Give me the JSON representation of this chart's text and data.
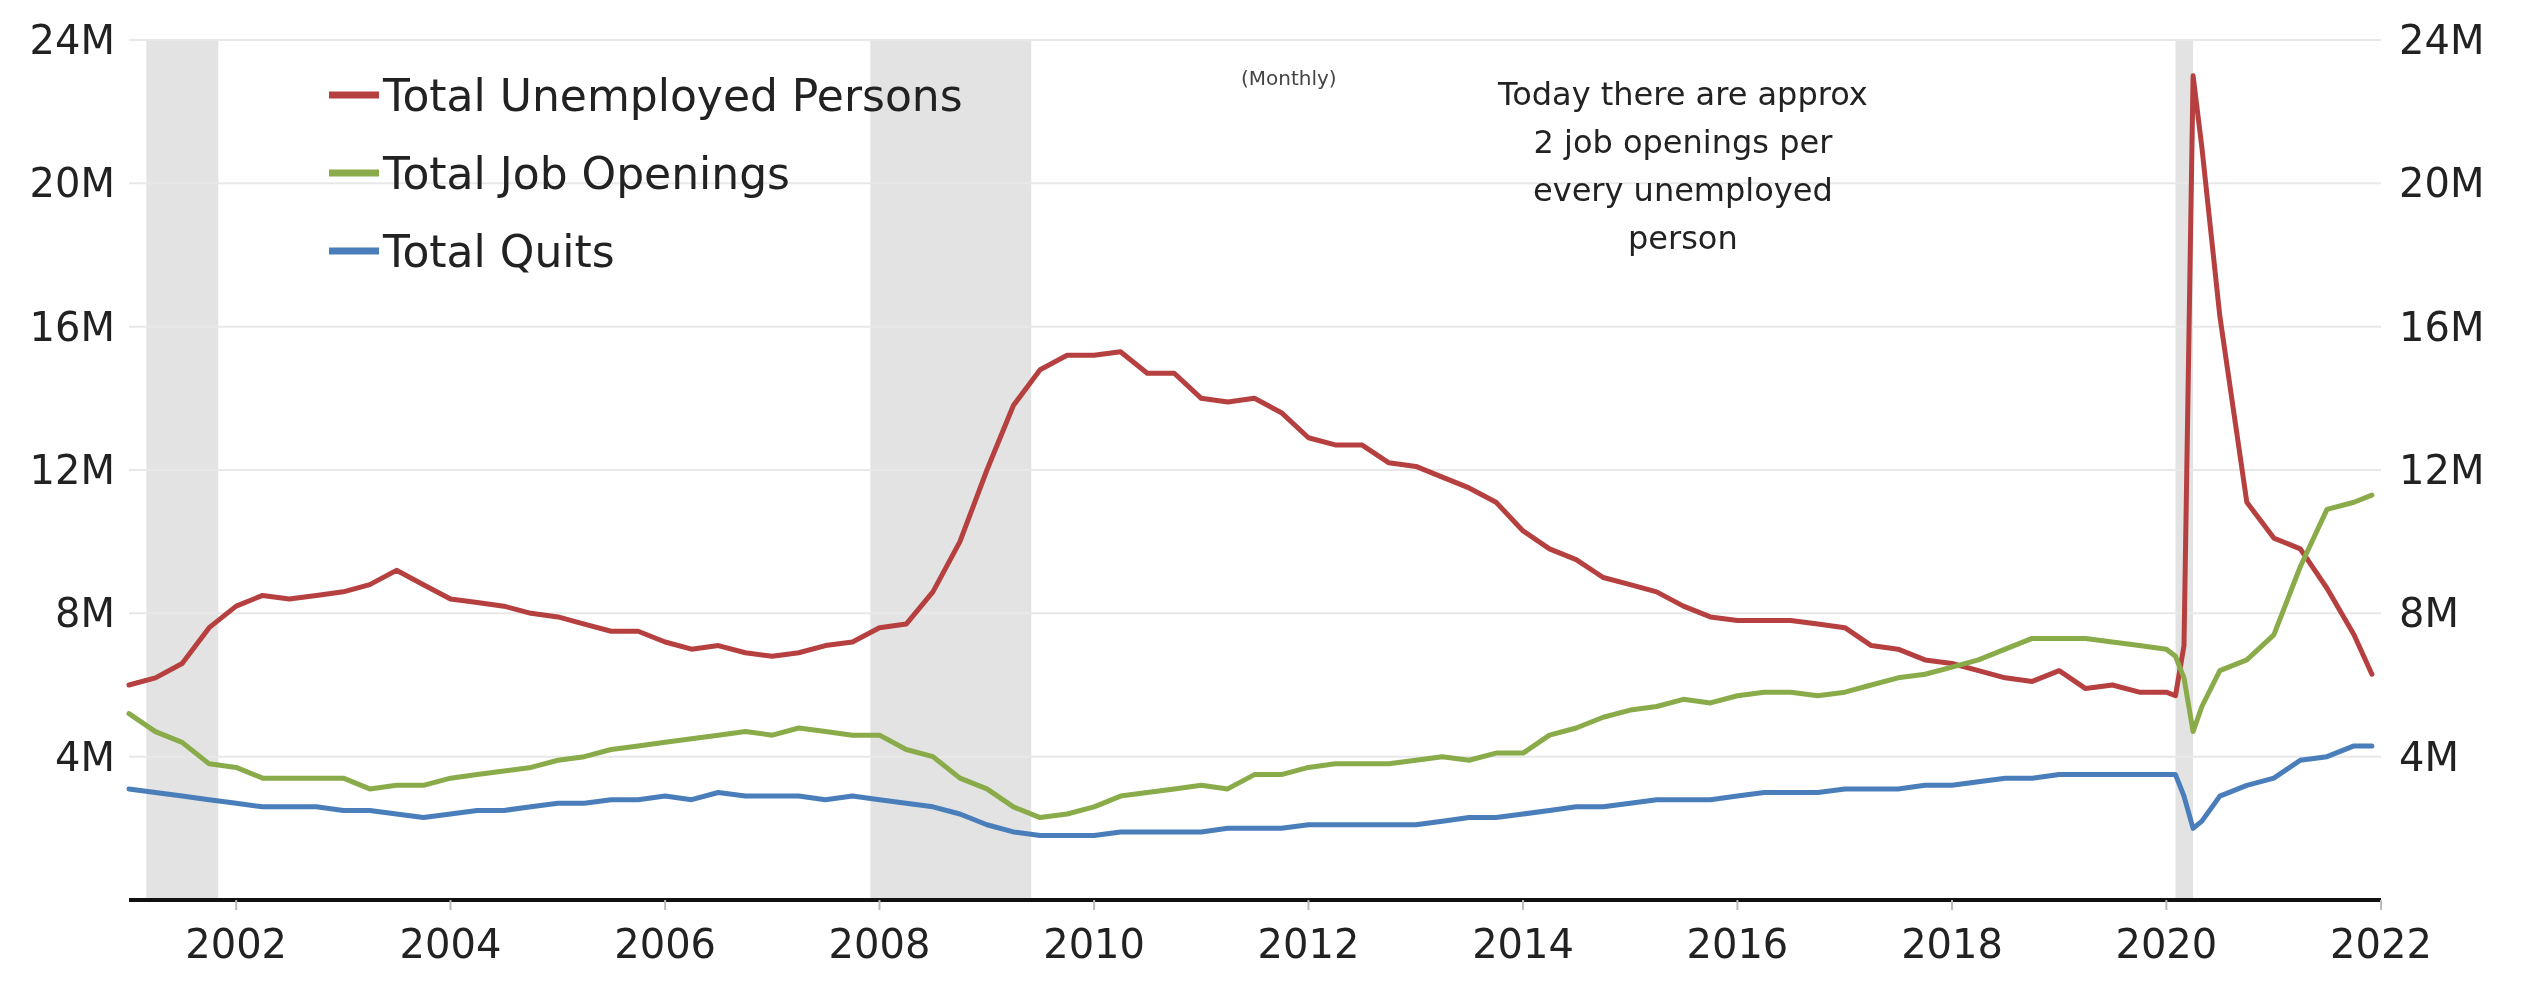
{
  "chart_data": {
    "type": "line",
    "annotations": [
      "(Monthly)",
      "Today there are approx 2 job openings per every unemployed person"
    ],
    "x": [
      "2001-01",
      "2001-04",
      "2001-07",
      "2001-10",
      "2002-01",
      "2002-04",
      "2002-07",
      "2002-10",
      "2003-01",
      "2003-04",
      "2003-07",
      "2003-10",
      "2004-01",
      "2004-04",
      "2004-07",
      "2004-10",
      "2005-01",
      "2005-04",
      "2005-07",
      "2005-10",
      "2006-01",
      "2006-04",
      "2006-07",
      "2006-10",
      "2007-01",
      "2007-04",
      "2007-07",
      "2007-10",
      "2008-01",
      "2008-04",
      "2008-07",
      "2008-10",
      "2009-01",
      "2009-04",
      "2009-07",
      "2009-10",
      "2010-01",
      "2010-04",
      "2010-07",
      "2010-10",
      "2011-01",
      "2011-04",
      "2011-07",
      "2011-10",
      "2012-01",
      "2012-04",
      "2012-07",
      "2012-10",
      "2013-01",
      "2013-04",
      "2013-07",
      "2013-10",
      "2014-01",
      "2014-04",
      "2014-07",
      "2014-10",
      "2015-01",
      "2015-04",
      "2015-07",
      "2015-10",
      "2016-01",
      "2016-04",
      "2016-07",
      "2016-10",
      "2017-01",
      "2017-04",
      "2017-07",
      "2017-10",
      "2018-01",
      "2018-04",
      "2018-07",
      "2018-10",
      "2019-01",
      "2019-04",
      "2019-07",
      "2019-10",
      "2020-01",
      "2020-02",
      "2020-03",
      "2020-04",
      "2020-05",
      "2020-07",
      "2020-10",
      "2021-01",
      "2021-04",
      "2021-07",
      "2021-10",
      "2021-12"
    ],
    "series": [
      {
        "name": "Total Unemployed Persons",
        "color": "#b5403f",
        "values": [
          6.0,
          6.2,
          6.6,
          7.6,
          8.2,
          8.5,
          8.4,
          8.5,
          8.6,
          8.8,
          9.2,
          8.8,
          8.4,
          8.3,
          8.2,
          8.0,
          7.9,
          7.7,
          7.5,
          7.5,
          7.2,
          7.0,
          7.1,
          6.9,
          6.8,
          6.9,
          7.1,
          7.2,
          7.6,
          7.7,
          8.6,
          10.0,
          12.0,
          13.8,
          14.8,
          15.2,
          15.2,
          15.3,
          14.7,
          14.7,
          14.0,
          13.9,
          14.0,
          13.6,
          12.9,
          12.7,
          12.7,
          12.2,
          12.1,
          11.8,
          11.5,
          11.1,
          10.3,
          9.8,
          9.5,
          9.0,
          8.8,
          8.6,
          8.2,
          7.9,
          7.8,
          7.8,
          7.8,
          7.7,
          7.6,
          7.1,
          7.0,
          6.7,
          6.6,
          6.4,
          6.2,
          6.1,
          6.4,
          5.9,
          6.0,
          5.8,
          5.8,
          5.7,
          7.1,
          23.0,
          21.0,
          16.3,
          11.1,
          10.1,
          9.8,
          8.7,
          7.4,
          6.3
        ]
      },
      {
        "name": "Total Job Openings",
        "color": "#8aab4a",
        "values": [
          5.2,
          4.7,
          4.4,
          3.8,
          3.7,
          3.4,
          3.4,
          3.4,
          3.4,
          3.1,
          3.2,
          3.2,
          3.4,
          3.5,
          3.6,
          3.7,
          3.9,
          4.0,
          4.2,
          4.3,
          4.4,
          4.5,
          4.6,
          4.7,
          4.6,
          4.8,
          4.7,
          4.6,
          4.6,
          4.2,
          4.0,
          3.4,
          3.1,
          2.6,
          2.3,
          2.4,
          2.6,
          2.9,
          3.0,
          3.1,
          3.2,
          3.1,
          3.5,
          3.5,
          3.7,
          3.8,
          3.8,
          3.8,
          3.9,
          4.0,
          3.9,
          4.1,
          4.1,
          4.6,
          4.8,
          5.1,
          5.3,
          5.4,
          5.6,
          5.5,
          5.7,
          5.8,
          5.8,
          5.7,
          5.8,
          6.0,
          6.2,
          6.3,
          6.5,
          6.7,
          7.0,
          7.3,
          7.3,
          7.3,
          7.2,
          7.1,
          7.0,
          6.8,
          6.2,
          4.7,
          5.4,
          6.4,
          6.7,
          7.4,
          9.3,
          10.9,
          11.1,
          11.3
        ]
      },
      {
        "name": "Total Quits",
        "color": "#4a7ebb",
        "values": [
          3.1,
          3.0,
          2.9,
          2.8,
          2.7,
          2.6,
          2.6,
          2.6,
          2.5,
          2.5,
          2.4,
          2.3,
          2.4,
          2.5,
          2.5,
          2.6,
          2.7,
          2.7,
          2.8,
          2.8,
          2.9,
          2.8,
          3.0,
          2.9,
          2.9,
          2.9,
          2.8,
          2.9,
          2.8,
          2.7,
          2.6,
          2.4,
          2.1,
          1.9,
          1.8,
          1.8,
          1.8,
          1.9,
          1.9,
          1.9,
          1.9,
          2.0,
          2.0,
          2.0,
          2.1,
          2.1,
          2.1,
          2.1,
          2.1,
          2.2,
          2.3,
          2.3,
          2.4,
          2.5,
          2.6,
          2.6,
          2.7,
          2.8,
          2.8,
          2.8,
          2.9,
          3.0,
          3.0,
          3.0,
          3.1,
          3.1,
          3.1,
          3.2,
          3.2,
          3.3,
          3.4,
          3.4,
          3.5,
          3.5,
          3.5,
          3.5,
          3.5,
          3.5,
          2.9,
          2.0,
          2.2,
          2.9,
          3.2,
          3.4,
          3.9,
          4.0,
          4.3,
          4.3
        ]
      }
    ],
    "xlim": [
      "2001-01",
      "2022-01"
    ],
    "xticks": [
      {
        "value": "2002",
        "label": "2002"
      },
      {
        "value": "2004",
        "label": "2004"
      },
      {
        "value": "2006",
        "label": "2006"
      },
      {
        "value": "2008",
        "label": "2008"
      },
      {
        "value": "2010",
        "label": "2010"
      },
      {
        "value": "2012",
        "label": "2012"
      },
      {
        "value": "2014",
        "label": "2014"
      },
      {
        "value": "2016",
        "label": "2016"
      },
      {
        "value": "2018",
        "label": "2018"
      },
      {
        "value": "2020",
        "label": "2020"
      },
      {
        "value": "2022",
        "label": "2022"
      }
    ],
    "ylim": [
      0,
      24
    ],
    "yticks": [
      {
        "value": 4,
        "label": "4M"
      },
      {
        "value": 8,
        "label": "8M"
      },
      {
        "value": 12,
        "label": "12M"
      },
      {
        "value": 16,
        "label": "16M"
      },
      {
        "value": 20,
        "label": "20M"
      },
      {
        "value": 24,
        "label": "24M"
      }
    ],
    "y2lim": [
      0,
      24
    ],
    "y2ticks": [
      {
        "value": 4,
        "label": "4M"
      },
      {
        "value": 8,
        "label": "8M"
      },
      {
        "value": 12,
        "label": "12M"
      },
      {
        "value": 16,
        "label": "16M"
      },
      {
        "value": 20,
        "label": "20M"
      },
      {
        "value": 24,
        "label": "24M"
      }
    ],
    "bands": [
      {
        "axis": "x",
        "from": "2001-03",
        "to": "2001-11",
        "color": "#e3e3e3"
      },
      {
        "axis": "x",
        "from": "2007-12",
        "to": "2009-06",
        "color": "#e3e3e3"
      },
      {
        "axis": "x",
        "from": "2020-02",
        "to": "2020-04",
        "color": "#e3e3e3"
      }
    ],
    "grid": "y",
    "legend": "top left",
    "line_style": "solid",
    "marker": "none"
  }
}
